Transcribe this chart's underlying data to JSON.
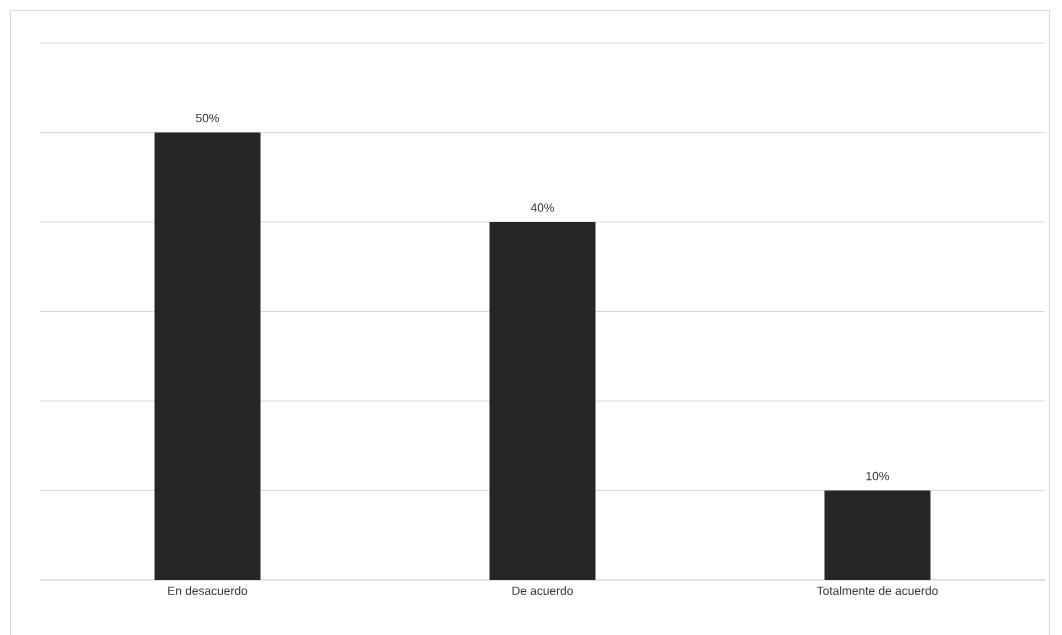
{
  "chart_data": {
    "type": "bar",
    "categories": [
      "En desacuerdo",
      "De acuerdo",
      "Totalmente de acuerdo"
    ],
    "values": [
      50,
      40,
      10
    ],
    "color": "#262626",
    "value_labels": [
      "50%",
      "40%",
      "10%"
    ],
    "ylim": [
      0,
      60
    ],
    "yticks": [
      {
        "value": 0,
        "label": null
      },
      {
        "value": 10,
        "label": null
      },
      {
        "value": 20,
        "label": null
      },
      {
        "value": 30,
        "label": null
      },
      {
        "value": 40,
        "label": null
      },
      {
        "value": 50,
        "label": null
      },
      {
        "value": 60,
        "label": null
      }
    ],
    "grid": "y",
    "tick_labels": "x"
  }
}
